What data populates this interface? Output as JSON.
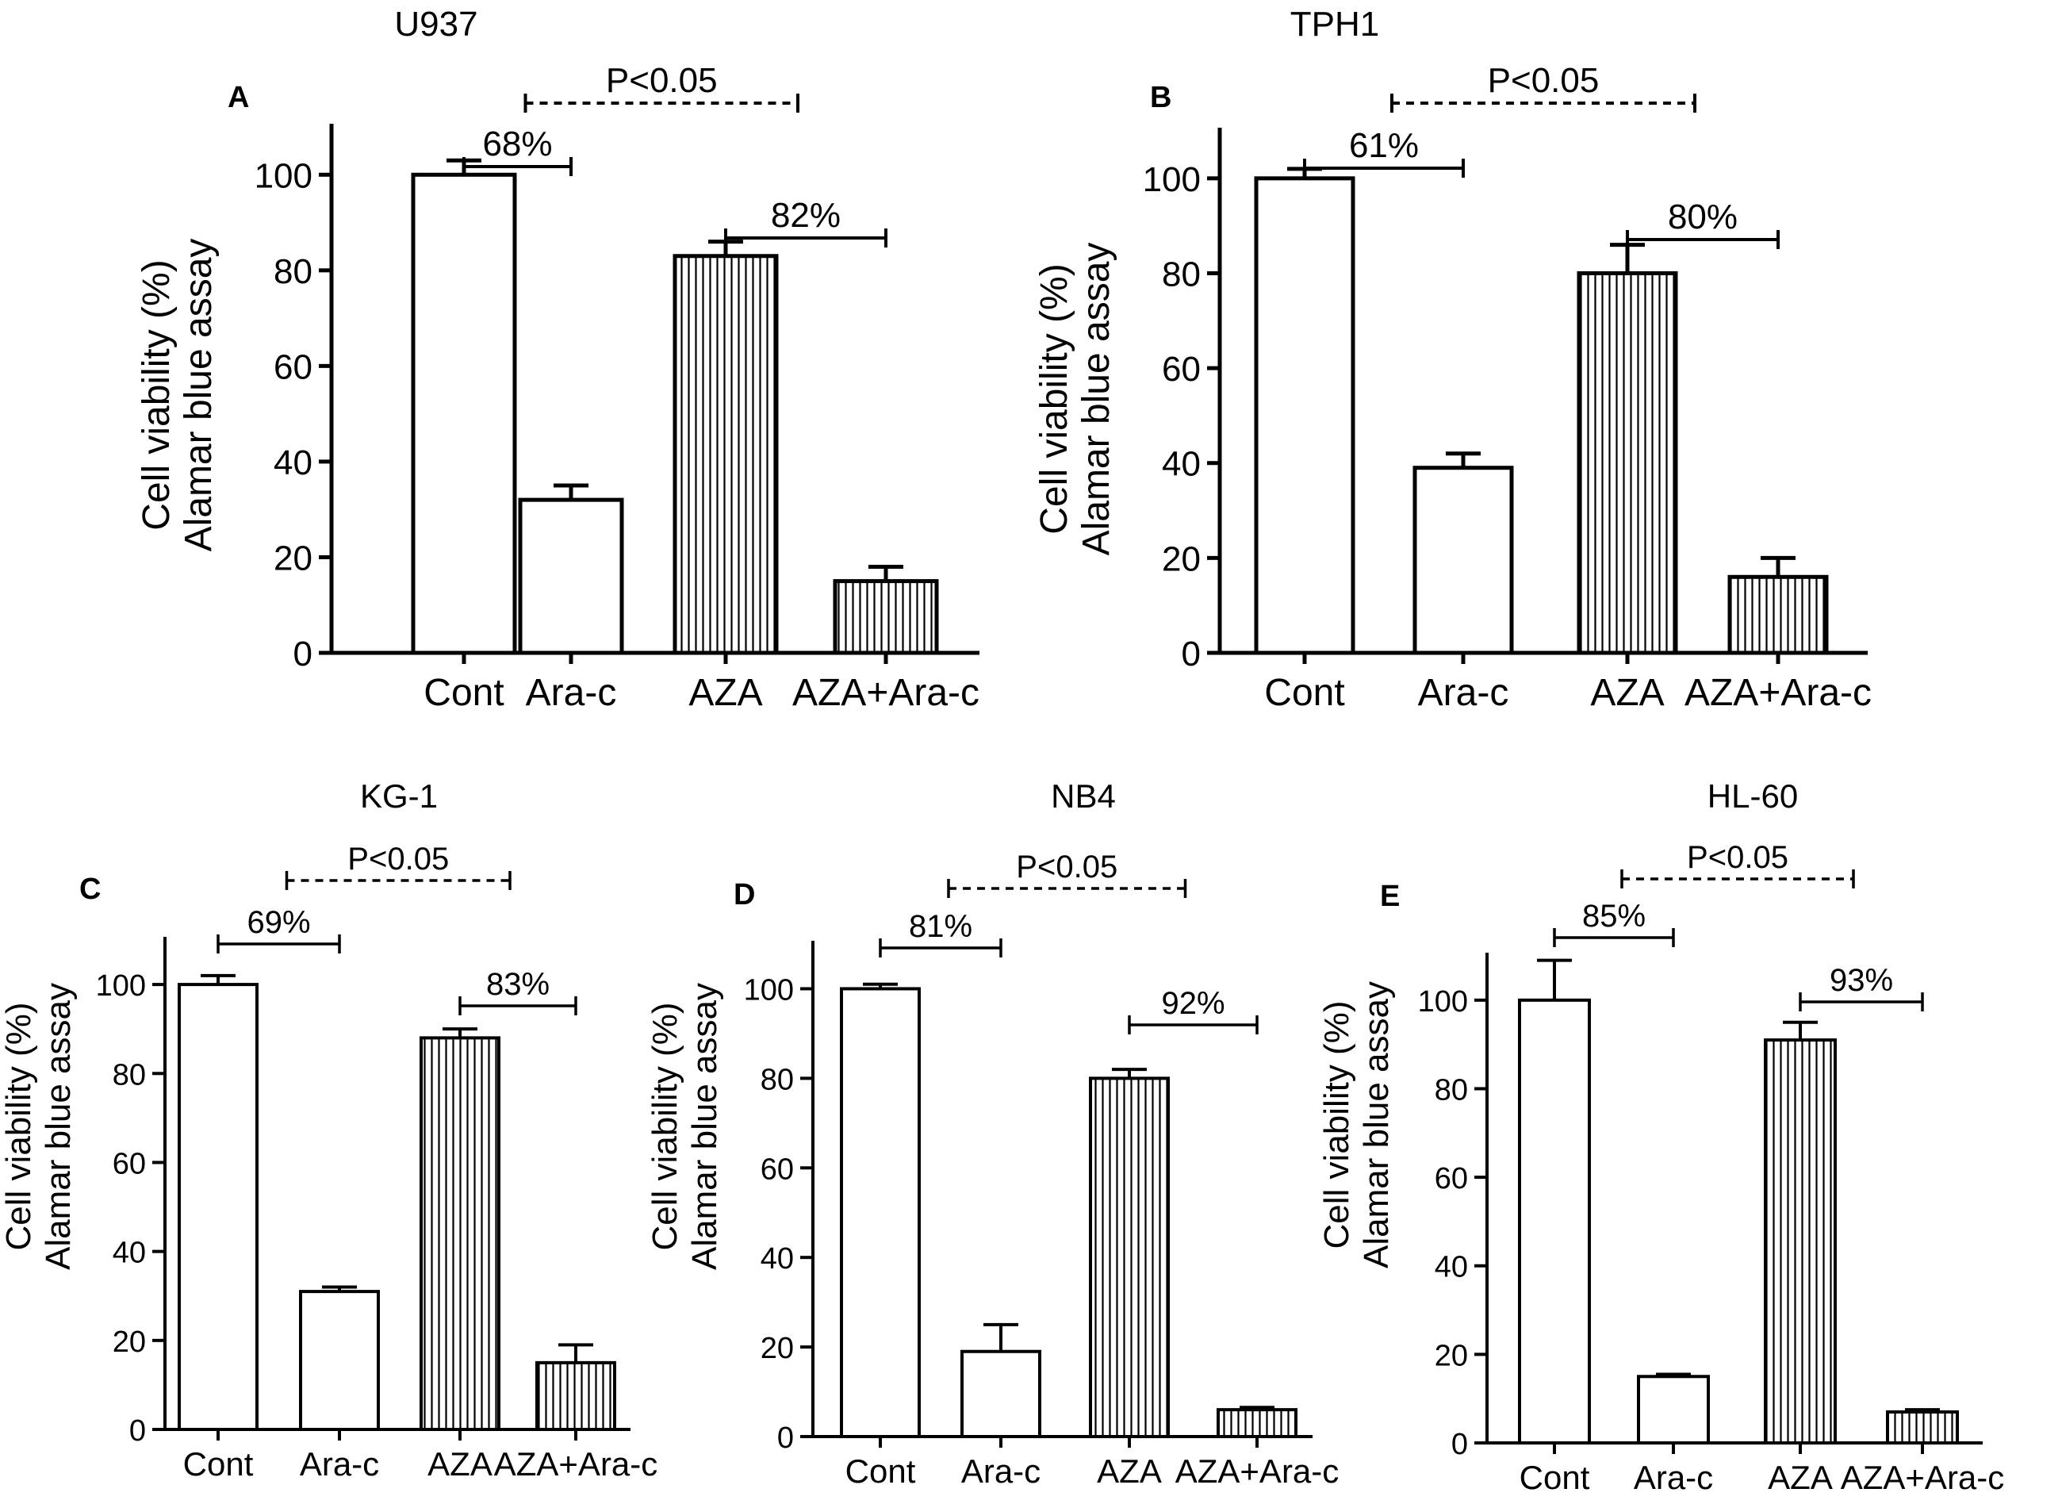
{
  "chart_data": [
    {
      "type": "bar",
      "panel": "A",
      "title": "U937",
      "categories": [
        "Cont",
        "Ara-c",
        "AZA",
        "AZA+Ara-c"
      ],
      "values": [
        100,
        32,
        83,
        15
      ],
      "errors": [
        3,
        3,
        3,
        3
      ],
      "fills": [
        "open",
        "open",
        "vertical-stripes",
        "vertical-stripes"
      ],
      "ylabel_line1": "Cell viability (%)",
      "ylabel_line2": "Alamar blue assay",
      "yticks": [
        0,
        20,
        40,
        60,
        80,
        100
      ],
      "ylim": [
        0,
        110
      ],
      "annotations": [
        {
          "text": "68%",
          "from": 0,
          "to": 1,
          "style": "solid"
        },
        {
          "text": "82%",
          "from": 2,
          "to": 3,
          "style": "solid"
        },
        {
          "text": "P<0.05",
          "from": 0.5,
          "to": 2.5,
          "style": "dashed"
        }
      ]
    },
    {
      "type": "bar",
      "panel": "B",
      "title": "TPH1",
      "categories": [
        "Cont",
        "Ara-c",
        "AZA",
        "AZA+Ara-c"
      ],
      "values": [
        100,
        39,
        80,
        16
      ],
      "errors": [
        2,
        3,
        6,
        4
      ],
      "fills": [
        "open",
        "open",
        "vertical-stripes",
        "vertical-stripes"
      ],
      "ylabel_line1": "Cell viability (%)",
      "ylabel_line2": "Alamar blue assay",
      "yticks": [
        0,
        20,
        40,
        60,
        80,
        100
      ],
      "ylim": [
        0,
        110
      ],
      "annotations": [
        {
          "text": "61%",
          "from": 0,
          "to": 1,
          "style": "solid"
        },
        {
          "text": "80%",
          "from": 2,
          "to": 3,
          "style": "solid"
        },
        {
          "text": "P<0.05",
          "from": 0.5,
          "to": 2.5,
          "style": "dashed"
        }
      ]
    },
    {
      "type": "bar",
      "panel": "C",
      "title": "KG-1",
      "categories": [
        "Cont",
        "Ara-c",
        "AZA",
        "AZA+Ara-c"
      ],
      "values": [
        100,
        31,
        88,
        15
      ],
      "errors": [
        2,
        1,
        2,
        4
      ],
      "fills": [
        "open",
        "open",
        "vertical-stripes",
        "vertical-stripes"
      ],
      "ylabel_line1": "Cell viability (%)",
      "ylabel_line2": "Alamar blue assay",
      "yticks": [
        0,
        20,
        40,
        60,
        80,
        100
      ],
      "ylim": [
        0,
        110
      ],
      "annotations": [
        {
          "text": "69%",
          "from": 0,
          "to": 1,
          "style": "solid"
        },
        {
          "text": "83%",
          "from": 2,
          "to": 3,
          "style": "solid"
        },
        {
          "text": "P<0.05",
          "from": 0.5,
          "to": 2.5,
          "style": "dashed"
        }
      ]
    },
    {
      "type": "bar",
      "panel": "D",
      "title": "NB4",
      "categories": [
        "Cont",
        "Ara-c",
        "AZA",
        "AZA+Ara-c"
      ],
      "values": [
        100,
        19,
        80,
        6
      ],
      "errors": [
        1,
        6,
        2,
        0.5
      ],
      "fills": [
        "open",
        "open",
        "vertical-stripes",
        "vertical-stripes"
      ],
      "ylabel_line1": "Cell viability (%)",
      "ylabel_line2": "Alamar blue assay",
      "yticks": [
        0,
        20,
        40,
        60,
        80,
        100
      ],
      "ylim": [
        0,
        110
      ],
      "annotations": [
        {
          "text": "81%",
          "from": 0,
          "to": 1,
          "style": "solid"
        },
        {
          "text": "92%",
          "from": 2,
          "to": 3,
          "style": "solid"
        },
        {
          "text": "P<0.05",
          "from": 0.5,
          "to": 2.5,
          "style": "dashed"
        }
      ]
    },
    {
      "type": "bar",
      "panel": "E",
      "title": "HL-60",
      "categories": [
        "Cont",
        "Ara-c",
        "AZA",
        "AZA+Ara-c"
      ],
      "values": [
        100,
        15,
        91,
        7
      ],
      "errors": [
        9,
        0.5,
        4,
        0.5
      ],
      "fills": [
        "open",
        "open",
        "vertical-stripes",
        "vertical-stripes"
      ],
      "ylabel_line1": "Cell viability (%)",
      "ylabel_line2": "Alamar blue assay",
      "yticks": [
        0,
        20,
        40,
        60,
        80,
        100
      ],
      "ylim": [
        0,
        110
      ],
      "annotations": [
        {
          "text": "85%",
          "from": 0,
          "to": 1,
          "style": "solid"
        },
        {
          "text": "93%",
          "from": 2,
          "to": 3,
          "style": "solid"
        },
        {
          "text": "P<0.05",
          "from": 0.5,
          "to": 2.5,
          "style": "dashed"
        }
      ]
    }
  ]
}
